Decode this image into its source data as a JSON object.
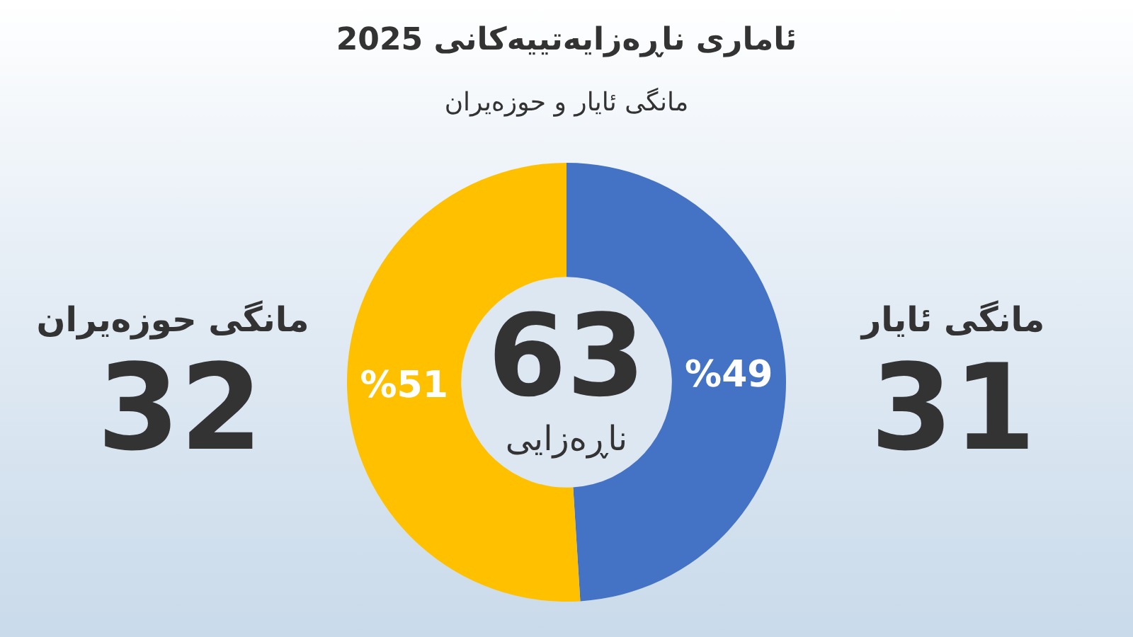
{
  "chart_data": {
    "type": "donut",
    "title": "ئاماری ناڕەزایەتییەکانی 2025",
    "subtitle": "مانگی ئایار و حوزەیران",
    "categories": [
      "مانگی ئایار",
      "مانگی حوزەیران"
    ],
    "values": [
      49,
      51
    ],
    "colors": [
      "#4472c4",
      "#ffc000"
    ],
    "value_labels": [
      "%49",
      "%51"
    ],
    "annotations": [
      "63",
      "ناڕەزایی",
      {
        "text": "31",
        "x": "مانگی ئایار"
      },
      {
        "text": "32",
        "x": "مانگی حوزەیران"
      }
    ],
    "legend": false
  }
}
